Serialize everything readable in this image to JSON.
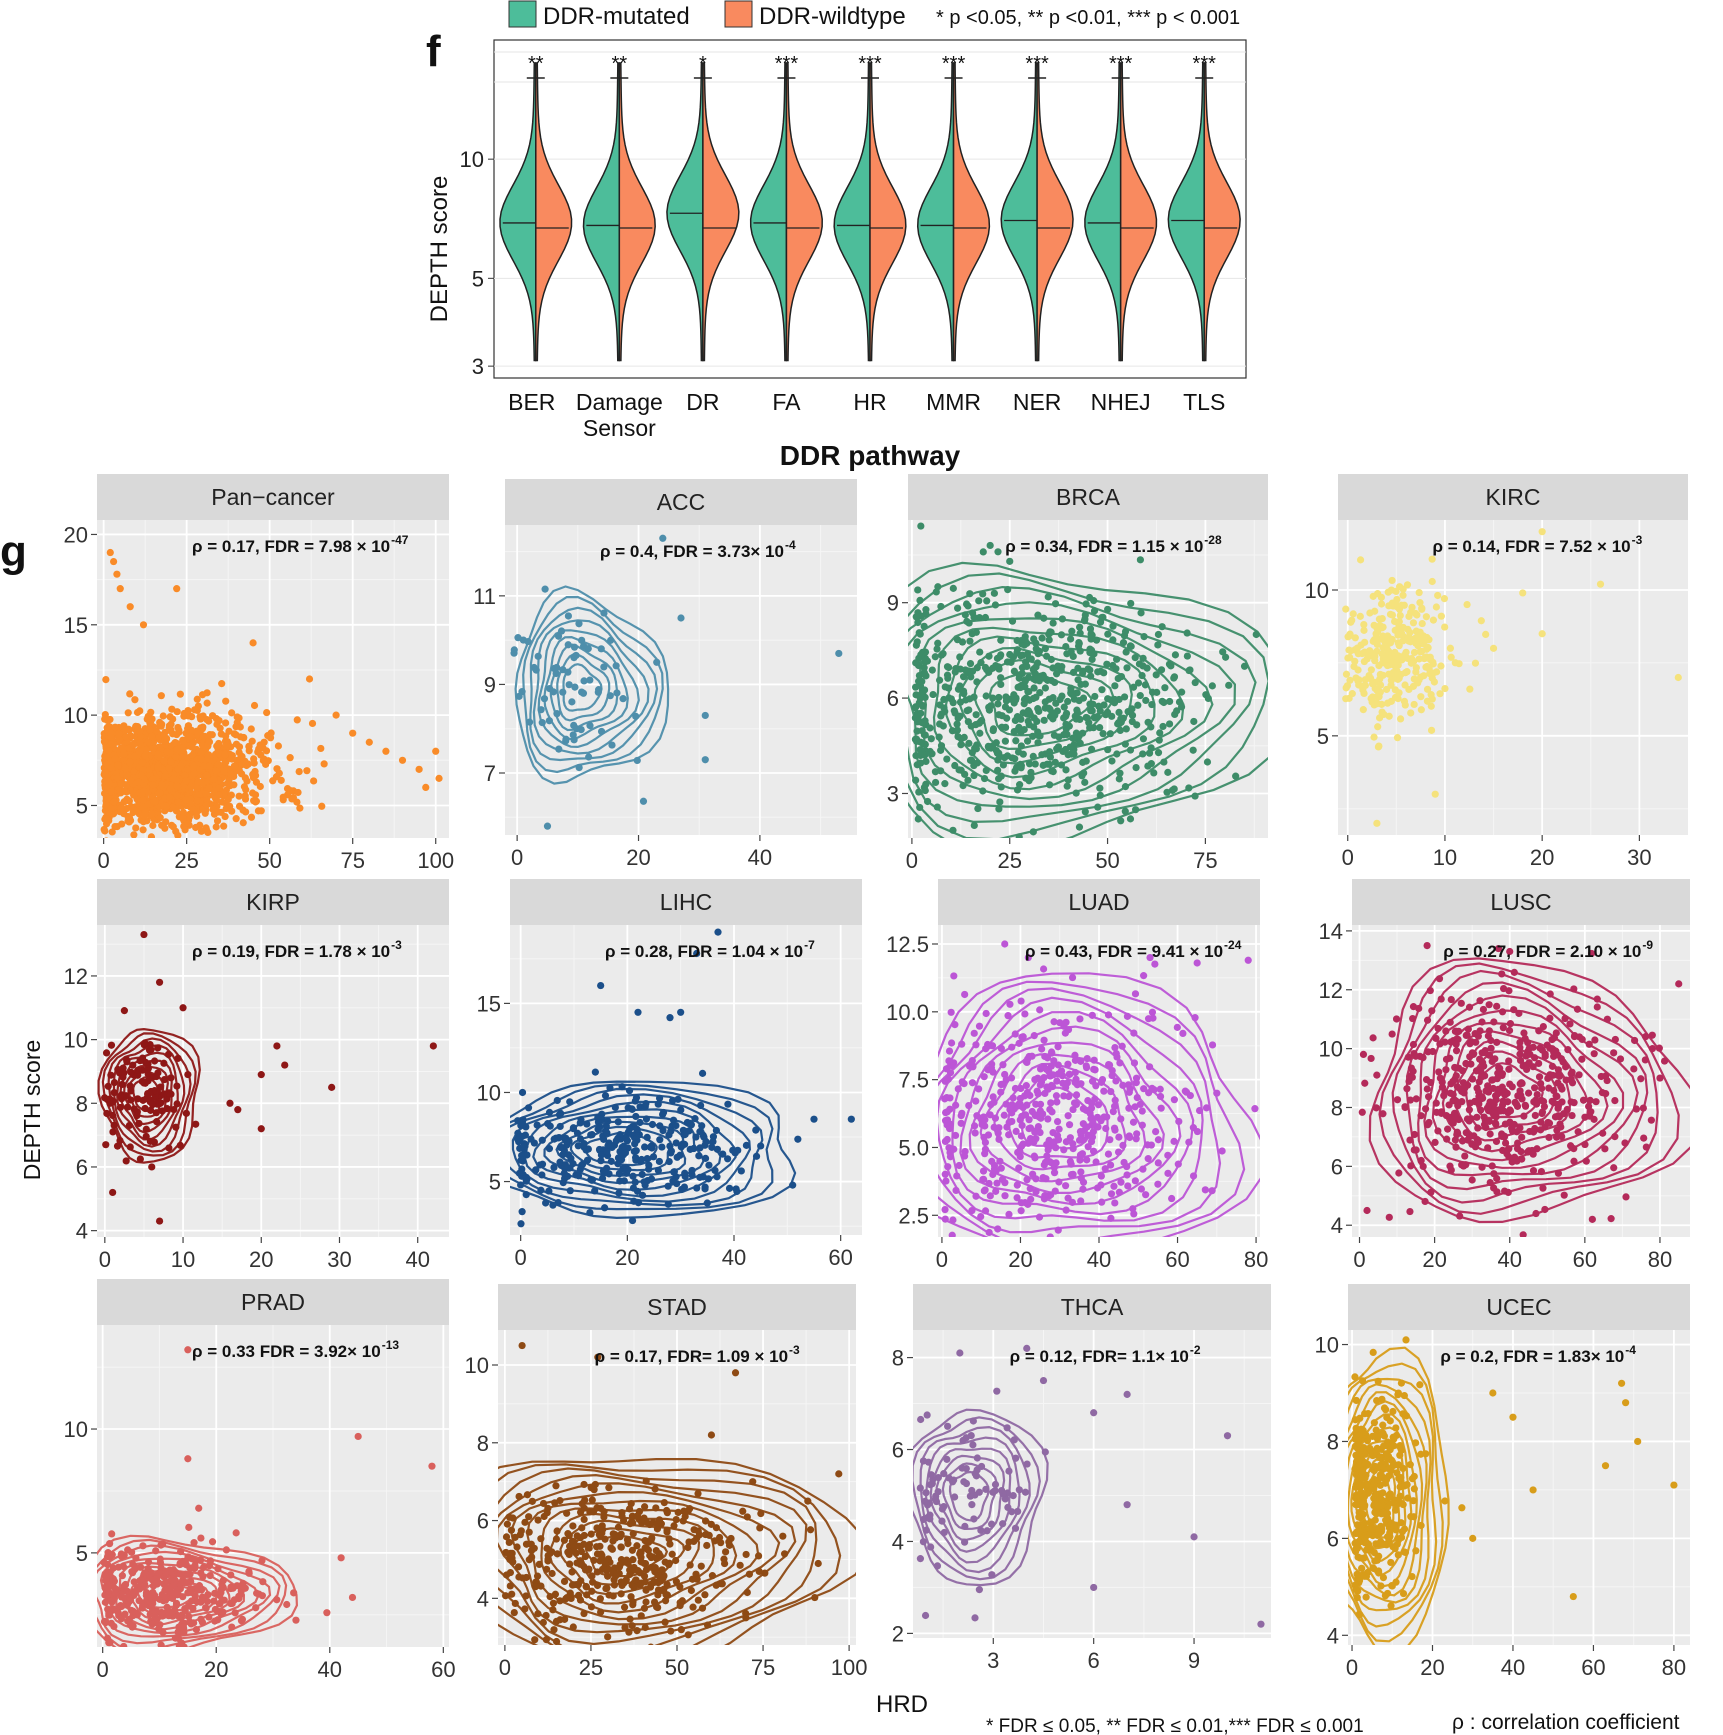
{
  "panel_f": {
    "label": "f",
    "legend": [
      {
        "label": "DDR-mutated",
        "color": "#4dbd9a"
      },
      {
        "label": "DDR-wildtype",
        "color": "#f98a5f"
      }
    ],
    "sig_legend": "* p <0.05,  ** p <0.01,  *** p < 0.001"
  },
  "panel_g": {
    "label": "g",
    "xlabel": "HRD",
    "ylabel": "DEPTH score",
    "footnote_fdr": "* FDR ≤ 0.05, ** FDR ≤ 0.01,*** FDR ≤ 0.001",
    "footnote_rho": "ρ : correlation coefficient"
  },
  "chart_data": [
    {
      "type": "violin",
      "title": "",
      "xlabel": "DDR pathway",
      "ylabel": "DEPTH score",
      "ylim": [
        2.8,
        20
      ],
      "yticks": [
        3,
        5,
        10
      ],
      "categories": [
        "BER",
        "Damage\nSensor",
        "DR",
        "FA",
        "HR",
        "MMR",
        "NER",
        "NHEJ",
        "TLS"
      ],
      "series": [
        {
          "name": "DDR-mutated",
          "median": [
            6.9,
            6.8,
            7.3,
            6.9,
            6.8,
            6.8,
            7.0,
            6.9,
            7.0
          ]
        },
        {
          "name": "DDR-wildtype",
          "median": [
            6.7,
            6.7,
            6.7,
            6.7,
            6.7,
            6.7,
            6.7,
            6.7,
            6.7
          ]
        }
      ],
      "significance": [
        "**",
        "**",
        "*",
        "***",
        "***",
        "***",
        "***",
        "***",
        "***"
      ]
    },
    {
      "type": "scatter",
      "title": "Pan−cancer",
      "color": "#f98b28",
      "annotation": "ρ = 0.17, FDR = 7.98 × 10",
      "annotation_exp": "-47",
      "xlim": [
        -2,
        104
      ],
      "ylim": [
        3.2,
        20.8
      ],
      "xticks": [
        0,
        25,
        50,
        75,
        100
      ],
      "yticks": [
        5,
        10,
        15,
        20
      ],
      "cluster": {
        "cx": 18,
        "cy": 6.8,
        "sx": 14,
        "sy": 1.5,
        "n": 1500
      },
      "outliers": [
        [
          2,
          19
        ],
        [
          3,
          18.5
        ],
        [
          4,
          17.8
        ],
        [
          5,
          17
        ],
        [
          8,
          16
        ],
        [
          12,
          15
        ],
        [
          22,
          17
        ],
        [
          45,
          14
        ],
        [
          62,
          12
        ],
        [
          70,
          10
        ],
        [
          75,
          9
        ],
        [
          80,
          8.5
        ],
        [
          85,
          8
        ],
        [
          90,
          7.5
        ],
        [
          95,
          7
        ],
        [
          100,
          8
        ],
        [
          101,
          6.5
        ],
        [
          97,
          6
        ]
      ],
      "contours": 0
    },
    {
      "type": "scatter",
      "title": "ACC",
      "color": "#4e8eab",
      "annotation": "ρ = 0.4, FDR = 3.73× 10",
      "annotation_exp": "-4",
      "xlim": [
        -2,
        56
      ],
      "ylim": [
        5.6,
        12.6
      ],
      "xticks": [
        0,
        20,
        40
      ],
      "yticks": [
        7,
        9,
        11
      ],
      "cluster": {
        "cx": 10,
        "cy": 8.9,
        "sx": 5,
        "sy": 0.9,
        "n": 70
      },
      "outliers": [
        [
          24,
          12.3
        ],
        [
          53,
          9.7
        ],
        [
          31,
          8.3
        ],
        [
          31,
          7.3
        ],
        [
          5,
          5.8
        ],
        [
          23,
          9.5
        ],
        [
          27,
          10.5
        ]
      ],
      "contours": 9
    },
    {
      "type": "scatter",
      "title": "BRCA",
      "color": "#3d8c68",
      "annotation": "ρ = 0.34, FDR = 1.15 × 10",
      "annotation_exp": "-28",
      "xlim": [
        -1,
        91
      ],
      "ylim": [
        1.6,
        11.6
      ],
      "xticks": [
        0,
        25,
        50,
        75
      ],
      "yticks": [
        3,
        6,
        9
      ],
      "cluster": {
        "cx": 30,
        "cy": 5.8,
        "sx": 20,
        "sy": 1.7,
        "n": 700
      },
      "outliers": [
        [
          20,
          10.8
        ],
        [
          22,
          10.6
        ],
        [
          25,
          10.3
        ],
        [
          63,
          8
        ],
        [
          85,
          7
        ],
        [
          88,
          8
        ]
      ],
      "contours": 10
    },
    {
      "type": "scatter",
      "title": "KIRC",
      "color": "#f5e27c",
      "annotation": "ρ = 0.14, FDR = 7.52 × 10",
      "annotation_exp": "-3",
      "xlim": [
        -1,
        35
      ],
      "ylim": [
        1.6,
        12.4
      ],
      "xticks": [
        0,
        10,
        20,
        30
      ],
      "yticks": [
        5,
        10
      ],
      "cluster": {
        "cx": 5,
        "cy": 7.8,
        "sx": 2.5,
        "sy": 1.2,
        "n": 300
      },
      "outliers": [
        [
          20,
          12
        ],
        [
          26,
          10.2
        ],
        [
          18,
          9.9
        ],
        [
          34,
          7
        ],
        [
          20,
          8.5
        ],
        [
          9,
          3
        ],
        [
          3,
          2
        ],
        [
          15,
          8
        ]
      ],
      "contours": 0
    },
    {
      "type": "scatter",
      "title": "KIRP",
      "color": "#8e1716",
      "annotation": "ρ = 0.19, FDR = 1.78 × 10",
      "annotation_exp": "-3",
      "xlim": [
        -1,
        44
      ],
      "ylim": [
        3.8,
        13.6
      ],
      "xticks": [
        0,
        10,
        20,
        30,
        40
      ],
      "yticks": [
        4,
        6,
        8,
        10,
        12
      ],
      "cluster": {
        "cx": 5,
        "cy": 8.3,
        "sx": 2.5,
        "sy": 0.9,
        "n": 120
      },
      "outliers": [
        [
          5,
          13.3
        ],
        [
          7,
          11.8
        ],
        [
          10,
          11
        ],
        [
          42,
          9.8
        ],
        [
          29,
          8.5
        ],
        [
          23,
          9.2
        ],
        [
          22,
          9.8
        ],
        [
          20,
          8.9
        ],
        [
          17,
          7.8
        ],
        [
          16,
          8
        ],
        [
          20,
          7.2
        ],
        [
          1,
          5.2
        ],
        [
          7,
          4.3
        ],
        [
          6,
          6
        ]
      ],
      "contours": 9
    },
    {
      "type": "scatter",
      "title": "LIHC",
      "color": "#1b4f8a",
      "annotation": "ρ = 0.28, FDR = 1.04 × 10",
      "annotation_exp": "-7",
      "xlim": [
        -2,
        64
      ],
      "ylim": [
        2,
        19.4
      ],
      "xticks": [
        0,
        20,
        40,
        60
      ],
      "yticks": [
        5,
        10,
        15
      ],
      "cluster": {
        "cx": 18,
        "cy": 6.8,
        "sx": 11,
        "sy": 1.5,
        "n": 320
      },
      "outliers": [
        [
          37,
          19
        ],
        [
          33,
          17.8
        ],
        [
          30,
          14.5
        ],
        [
          28,
          14.2
        ],
        [
          22,
          14.5
        ],
        [
          62,
          8.5
        ],
        [
          55,
          8.5
        ],
        [
          45,
          7
        ],
        [
          51,
          4.8
        ],
        [
          15,
          16
        ]
      ],
      "contours": 10
    },
    {
      "type": "scatter",
      "title": "LUAD",
      "color": "#bc55d6",
      "annotation": "ρ = 0.43, FDR = 9.41 × 10",
      "annotation_exp": "-24",
      "xlim": [
        -1,
        81
      ],
      "ylim": [
        1.7,
        13.2
      ],
      "xticks": [
        0,
        20,
        40,
        60,
        80
      ],
      "yticks": [
        2.5,
        5.0,
        7.5,
        10.0,
        12.5
      ],
      "cluster": {
        "cx": 28,
        "cy": 6.0,
        "sx": 15,
        "sy": 1.9,
        "n": 500
      },
      "outliers": [
        [
          16,
          12.5
        ],
        [
          22,
          12
        ],
        [
          53,
          12
        ],
        [
          65,
          11.8
        ],
        [
          78,
          11.9
        ],
        [
          70,
          7
        ]
      ],
      "contours": 11
    },
    {
      "type": "scatter",
      "title": "LUSC",
      "color": "#b42a5a",
      "annotation": "ρ = 0.27, FDR = 2.10 × 10",
      "annotation_exp": "-9",
      "xlim": [
        -2,
        88
      ],
      "ylim": [
        3.6,
        14.2
      ],
      "xticks": [
        0,
        20,
        40,
        60,
        80
      ],
      "yticks": [
        4,
        6,
        8,
        10,
        12,
        14
      ],
      "cluster": {
        "cx": 38,
        "cy": 8.5,
        "sx": 14,
        "sy": 1.6,
        "n": 500
      },
      "outliers": [
        [
          18,
          13.5
        ],
        [
          37,
          13.4
        ],
        [
          40,
          13.3
        ],
        [
          85,
          12.2
        ],
        [
          80,
          9
        ],
        [
          78,
          10
        ],
        [
          2,
          4.5
        ],
        [
          62,
          4.2
        ],
        [
          66,
          11
        ]
      ],
      "contours": 11
    },
    {
      "type": "scatter",
      "title": "PRAD",
      "color": "#d9605c",
      "annotation": "ρ = 0.33  FDR = 3.92× 10",
      "annotation_exp": "-13",
      "xlim": [
        -1,
        61
      ],
      "ylim": [
        1.2,
        14.2
      ],
      "xticks": [
        0,
        20,
        40,
        60
      ],
      "yticks": [
        5,
        10
      ],
      "cluster": {
        "cx": 11,
        "cy": 3.3,
        "sx": 7,
        "sy": 0.9,
        "n": 360
      },
      "outliers": [
        [
          15,
          13.2
        ],
        [
          45,
          9.7
        ],
        [
          58,
          8.5
        ],
        [
          15,
          8.8
        ],
        [
          42,
          4.8
        ],
        [
          44,
          3.2
        ]
      ],
      "contours": 10
    },
    {
      "type": "scatter",
      "title": "STAD",
      "color": "#8e4a14",
      "annotation": "ρ = 0.17, FDR= 1.09 × 10",
      "annotation_exp": "-3",
      "xlim": [
        -2,
        102
      ],
      "ylim": [
        2.8,
        10.9
      ],
      "xticks": [
        0,
        25,
        50,
        75,
        100
      ],
      "yticks": [
        4,
        6,
        8,
        10
      ],
      "cluster": {
        "cx": 33,
        "cy": 5.1,
        "sx": 18,
        "sy": 0.9,
        "n": 420
      },
      "outliers": [
        [
          5,
          10.5
        ],
        [
          27,
          10.2
        ],
        [
          67,
          9.8
        ],
        [
          60,
          8.2
        ],
        [
          72,
          7
        ],
        [
          88,
          6.5
        ],
        [
          97,
          7.2
        ],
        [
          70,
          3.5
        ]
      ],
      "contours": 12
    },
    {
      "type": "scatter",
      "title": "THCA",
      "color": "#8f69a3",
      "annotation": "ρ = 0.12, FDR= 1.1× 10",
      "annotation_exp": "-2",
      "xlim": [
        0.6,
        11.3
      ],
      "ylim": [
        1.9,
        8.6
      ],
      "xticks": [
        3,
        6,
        9
      ],
      "yticks": [
        2,
        4,
        6,
        8
      ],
      "cluster": {
        "cx": 2.2,
        "cy": 5.0,
        "sx": 0.9,
        "sy": 0.9,
        "n": 90
      },
      "outliers": [
        [
          4,
          8.2
        ],
        [
          4.5,
          7.5
        ],
        [
          2,
          8.1
        ],
        [
          6,
          6.8
        ],
        [
          7,
          7.2
        ],
        [
          10,
          6.3
        ],
        [
          9,
          4.1
        ],
        [
          11,
          2.2
        ],
        [
          6,
          3
        ],
        [
          7,
          4.8
        ]
      ],
      "contours": 8
    },
    {
      "type": "scatter",
      "title": "UCEC",
      "color": "#d89d1a",
      "annotation": "ρ = 0.2, FDR = 1.83× 10",
      "annotation_exp": "-4",
      "xlim": [
        -1,
        84
      ],
      "ylim": [
        3.8,
        10.3
      ],
      "xticks": [
        0,
        20,
        40,
        60,
        80
      ],
      "yticks": [
        4,
        6,
        8,
        10
      ],
      "cluster": {
        "cx": 6,
        "cy": 6.8,
        "sx": 5,
        "sy": 1.0,
        "n": 380
      },
      "outliers": [
        [
          67,
          9.2
        ],
        [
          68,
          8.8
        ],
        [
          71,
          8
        ],
        [
          63,
          7.5
        ],
        [
          80,
          7.1
        ],
        [
          55,
          4.8
        ],
        [
          35,
          9
        ],
        [
          40,
          8.5
        ],
        [
          30,
          6
        ],
        [
          45,
          7
        ]
      ],
      "contours": 12
    }
  ]
}
